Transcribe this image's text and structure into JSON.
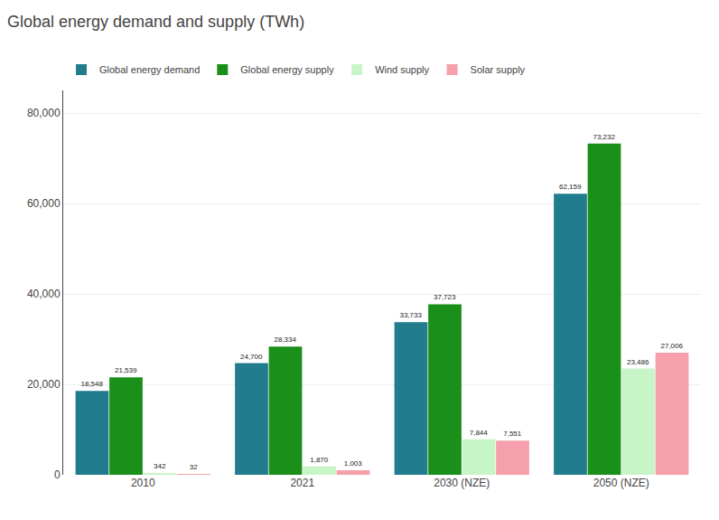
{
  "chart_data": {
    "type": "bar",
    "title": "Global energy demand and supply (TWh)",
    "categories": [
      "2010",
      "2021",
      "2030 (NZE)",
      "2050 (NZE)"
    ],
    "series": [
      {
        "name": "Global energy demand",
        "color": "#217d8e",
        "values": [
          18548,
          24700,
          33733,
          62159
        ],
        "value_labels": [
          "18,548",
          "24,700",
          "33,733",
          "62,159"
        ]
      },
      {
        "name": "Global energy supply",
        "color": "#1a8f1a",
        "values": [
          21539,
          28334,
          37723,
          73232
        ],
        "value_labels": [
          "21,539",
          "28,334",
          "37,723",
          "73,232"
        ]
      },
      {
        "name": "Wind supply",
        "color": "#c8f5c8",
        "values": [
          342,
          1870,
          7844,
          23486
        ],
        "value_labels": [
          "342",
          "1,870",
          "7,844",
          "23,486"
        ]
      },
      {
        "name": "Solar supply",
        "color": "#f5a0aa",
        "values": [
          32,
          1003,
          7551,
          27006
        ],
        "value_labels": [
          "32",
          "1,003",
          "7,551",
          "27,006"
        ]
      }
    ],
    "ylim": [
      0,
      85000
    ],
    "yticks": [
      0,
      {
        "value": 20000,
        "label": "20,000"
      },
      {
        "value": 40000,
        "label": "40,000"
      },
      {
        "value": 60000,
        "label": "60,000"
      },
      {
        "value": 80000,
        "label": "80,000"
      }
    ],
    "grid": true,
    "legend": "upper left",
    "data_labels": true
  }
}
